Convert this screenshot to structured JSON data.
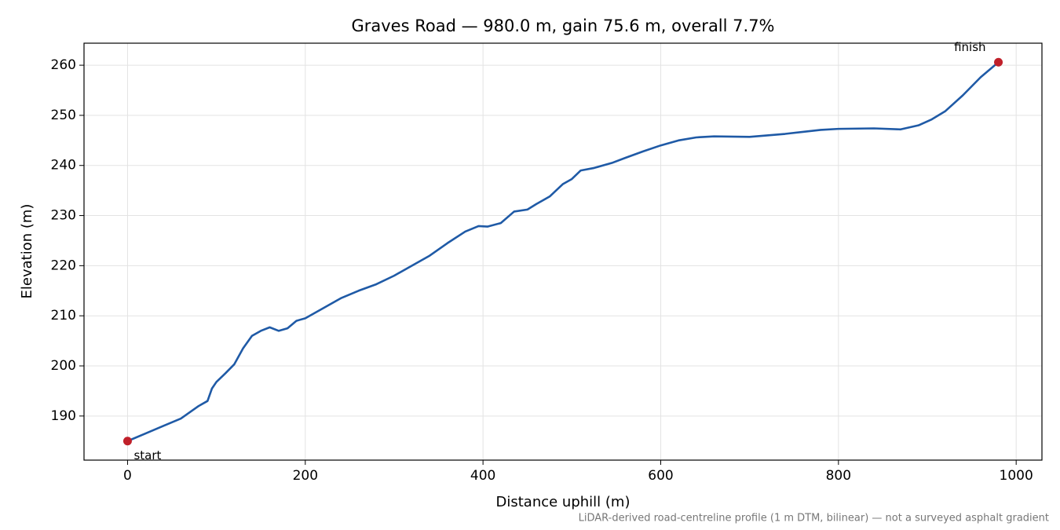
{
  "chart_data": {
    "type": "line",
    "title": "Graves Road — 980.0 m, gain 75.6 m, overall 7.7%",
    "xlabel": "Distance uphill (m)",
    "ylabel": "Elevation (m)",
    "footnote": "LiDAR-derived road-centreline profile (1 m DTM, bilinear) — not a surveyed asphalt gradient",
    "annotations": [
      "start",
      "finish"
    ],
    "x": [
      0,
      20,
      40,
      60,
      80,
      90,
      95,
      100,
      110,
      120,
      130,
      140,
      150,
      160,
      170,
      180,
      190,
      200,
      220,
      240,
      260,
      280,
      300,
      320,
      340,
      360,
      380,
      395,
      405,
      420,
      435,
      450,
      460,
      475,
      490,
      500,
      510,
      525,
      545,
      560,
      580,
      600,
      620,
      640,
      660,
      700,
      740,
      780,
      800,
      840,
      870,
      890,
      905,
      920,
      940,
      960,
      980
    ],
    "values": [
      185.0,
      186.5,
      188.0,
      189.5,
      192.0,
      193.0,
      195.5,
      196.8,
      198.5,
      200.3,
      203.5,
      206.0,
      207.0,
      207.7,
      207.0,
      207.5,
      209.0,
      209.5,
      211.5,
      213.5,
      215.0,
      216.3,
      218.0,
      220.0,
      222.0,
      224.5,
      226.8,
      227.9,
      227.8,
      228.5,
      230.8,
      231.2,
      232.3,
      233.8,
      236.3,
      237.3,
      239.0,
      239.5,
      240.5,
      241.5,
      242.8,
      244.0,
      245.0,
      245.6,
      245.8,
      245.7,
      246.3,
      247.1,
      247.3,
      247.4,
      247.2,
      248.0,
      249.2,
      250.8,
      254.0,
      257.6,
      260.6
    ],
    "color": "#1f5aa6",
    "endpoint_color": "#c0202a",
    "xlim": [
      -49,
      1029
    ],
    "ylim": [
      181.2,
      264.4
    ],
    "xticks": [
      0,
      200,
      400,
      600,
      800,
      1000
    ],
    "yticks": [
      190,
      200,
      210,
      220,
      230,
      240,
      250,
      260
    ],
    "grid": true
  }
}
